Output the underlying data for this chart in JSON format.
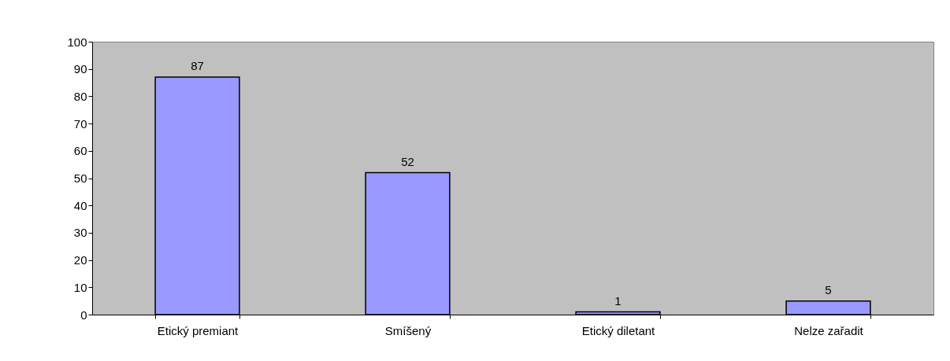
{
  "chart_data": {
    "type": "bar",
    "categories": [
      "Etický premiant",
      "Smíšený",
      "Etický diletant",
      "Nelze zařadit"
    ],
    "values": [
      87,
      52,
      1,
      5
    ],
    "color": "#9999ff",
    "ylim": [
      0,
      100
    ],
    "yticks": [
      0,
      10,
      20,
      30,
      40,
      50,
      60,
      70,
      80,
      90,
      100
    ],
    "data_labels": true,
    "grid": false
  }
}
